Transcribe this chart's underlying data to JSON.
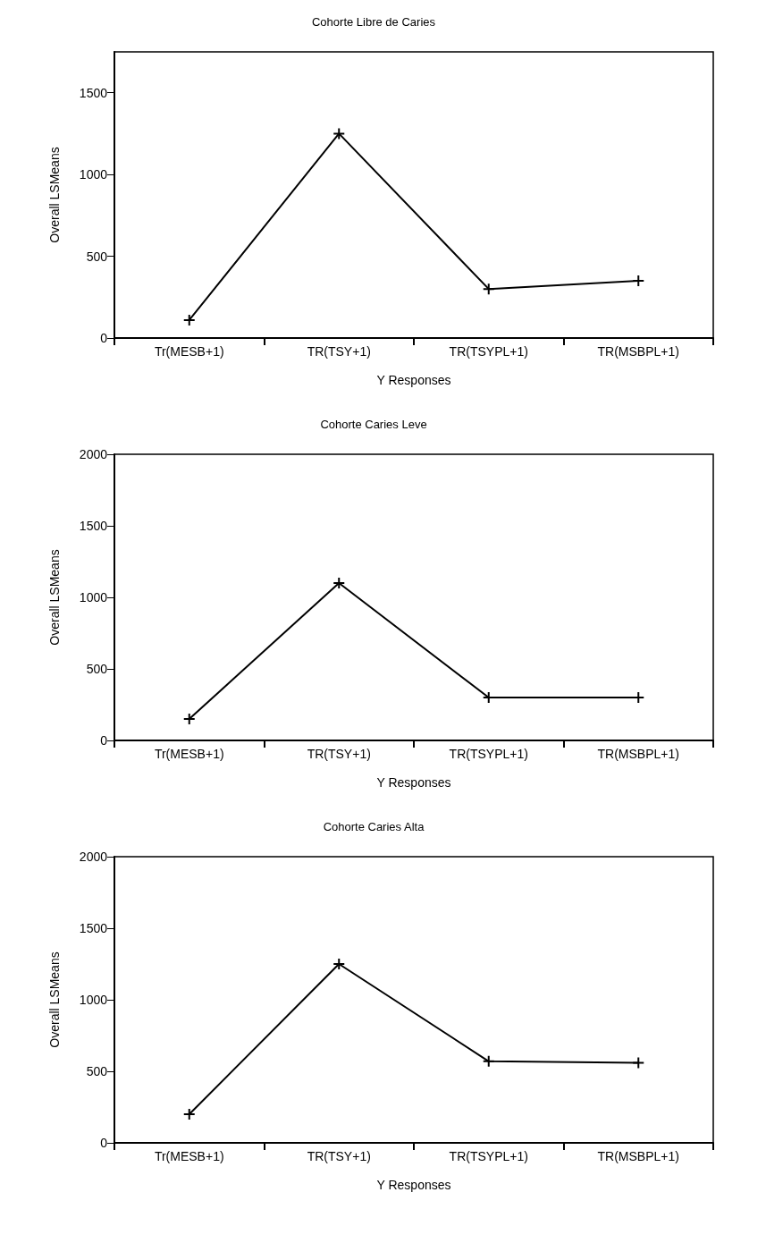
{
  "chart_data": [
    {
      "type": "line",
      "title": "Cohorte Libre de Caries",
      "xlabel": "Y Responses",
      "ylabel": "Overall LSMeans",
      "categories": [
        "Tr(MESB+1)",
        "TR(TSY+1)",
        "TR(TSYPL+1)",
        "TR(MSBPL+1)"
      ],
      "values": [
        110,
        1250,
        300,
        350
      ],
      "color": "#000000",
      "ylim": [
        0,
        1750
      ],
      "yticks": [
        0,
        500,
        1000,
        1500
      ],
      "marker": "cross"
    },
    {
      "type": "line",
      "title": "Cohorte Caries Leve",
      "xlabel": "Y Responses",
      "ylabel": "Overall LSMeans",
      "categories": [
        "Tr(MESB+1)",
        "TR(TSY+1)",
        "TR(TSYPL+1)",
        "TR(MSBPL+1)"
      ],
      "values": [
        150,
        1100,
        300,
        300
      ],
      "color": "#000000",
      "ylim": [
        0,
        2000
      ],
      "yticks": [
        0,
        500,
        1000,
        1500,
        2000
      ],
      "marker": "cross"
    },
    {
      "type": "line",
      "title": "Cohorte Caries Alta",
      "xlabel": "Y Responses",
      "ylabel": "Overall LSMeans",
      "categories": [
        "Tr(MESB+1)",
        "TR(TSY+1)",
        "TR(TSYPL+1)",
        "TR(MSBPL+1)"
      ],
      "values": [
        200,
        1250,
        570,
        560
      ],
      "color": "#000000",
      "ylim": [
        0,
        2000
      ],
      "yticks": [
        0,
        500,
        1000,
        1500,
        2000
      ],
      "marker": "cross"
    }
  ]
}
